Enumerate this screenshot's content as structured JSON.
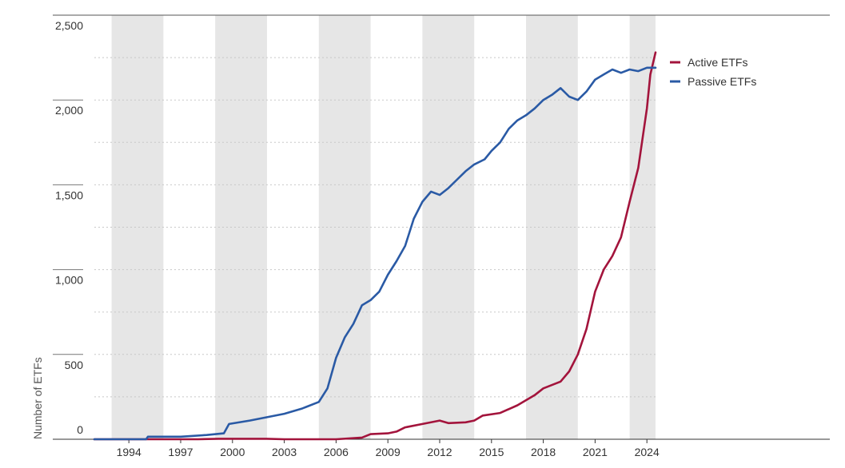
{
  "chart_data": {
    "type": "line",
    "title": "",
    "xlabel": "",
    "ylabel": "Number of ETFs",
    "xlim": [
      1992,
      2024.5
    ],
    "ylim": [
      0,
      2500
    ],
    "y_ticks": [
      0,
      500,
      1000,
      1500,
      2000,
      2500
    ],
    "y_tick_labels": [
      "0",
      "500",
      "1,000",
      "1,500",
      "2,000",
      "2,500"
    ],
    "x_ticks": [
      1994,
      1997,
      2000,
      2003,
      2006,
      2009,
      2012,
      2015,
      2018,
      2021,
      2024
    ],
    "x_tick_labels": [
      "1994",
      "1997",
      "2000",
      "2003",
      "2006",
      "2009",
      "2012",
      "2015",
      "2018",
      "2021",
      "2024"
    ],
    "shaded_bands": [
      [
        1993,
        1996
      ],
      [
        1999,
        2002
      ],
      [
        2005,
        2008
      ],
      [
        2011,
        2014
      ],
      [
        2017,
        2020
      ],
      [
        2023,
        2024.5
      ]
    ],
    "grid": "horizontal dotted",
    "legend_position": "right",
    "colors": {
      "active": "#a3143c",
      "passive": "#2a5aa5",
      "band": "#e6e6e6"
    },
    "series": [
      {
        "name": "Active ETFs",
        "color": "#a3143c",
        "points": [
          [
            1992,
            0
          ],
          [
            1998,
            0
          ],
          [
            1999.2,
            3
          ],
          [
            2002,
            3
          ],
          [
            2003,
            0
          ],
          [
            2006,
            0
          ],
          [
            2007.5,
            10
          ],
          [
            2008,
            30
          ],
          [
            2009,
            35
          ],
          [
            2009.5,
            45
          ],
          [
            2010,
            70
          ],
          [
            2011,
            90
          ],
          [
            2012,
            110
          ],
          [
            2012.5,
            95
          ],
          [
            2013.5,
            100
          ],
          [
            2014,
            110
          ],
          [
            2014.5,
            140
          ],
          [
            2015.5,
            155
          ],
          [
            2016.5,
            200
          ],
          [
            2017.5,
            260
          ],
          [
            2018,
            300
          ],
          [
            2019,
            340
          ],
          [
            2019.5,
            400
          ],
          [
            2020,
            500
          ],
          [
            2020.5,
            650
          ],
          [
            2021,
            870
          ],
          [
            2021.5,
            1000
          ],
          [
            2022,
            1080
          ],
          [
            2022.5,
            1190
          ],
          [
            2023,
            1400
          ],
          [
            2023.5,
            1600
          ],
          [
            2024,
            1950
          ],
          [
            2024.2,
            2150
          ],
          [
            2024.5,
            2280
          ]
        ]
      },
      {
        "name": "Passive ETFs",
        "color": "#2a5aa5",
        "points": [
          [
            1992,
            0
          ],
          [
            1995,
            0
          ],
          [
            1995.1,
            15
          ],
          [
            1997,
            15
          ],
          [
            1998.5,
            25
          ],
          [
            1999.5,
            35
          ],
          [
            1999.8,
            90
          ],
          [
            2001,
            110
          ],
          [
            2002,
            130
          ],
          [
            2003,
            150
          ],
          [
            2004,
            180
          ],
          [
            2005,
            220
          ],
          [
            2005.5,
            300
          ],
          [
            2006,
            480
          ],
          [
            2006.5,
            600
          ],
          [
            2007,
            680
          ],
          [
            2007.5,
            790
          ],
          [
            2008,
            820
          ],
          [
            2008.5,
            870
          ],
          [
            2009,
            970
          ],
          [
            2009.5,
            1050
          ],
          [
            2010,
            1140
          ],
          [
            2010.5,
            1300
          ],
          [
            2011,
            1400
          ],
          [
            2011.5,
            1460
          ],
          [
            2012,
            1440
          ],
          [
            2012.5,
            1480
          ],
          [
            2013,
            1530
          ],
          [
            2013.5,
            1580
          ],
          [
            2014,
            1620
          ],
          [
            2014.6,
            1650
          ],
          [
            2015,
            1700
          ],
          [
            2015.5,
            1750
          ],
          [
            2016,
            1830
          ],
          [
            2016.5,
            1880
          ],
          [
            2017,
            1910
          ],
          [
            2017.5,
            1950
          ],
          [
            2018,
            2000
          ],
          [
            2018.5,
            2030
          ],
          [
            2019,
            2070
          ],
          [
            2019.5,
            2020
          ],
          [
            2020,
            2000
          ],
          [
            2020.5,
            2050
          ],
          [
            2021,
            2120
          ],
          [
            2021.5,
            2150
          ],
          [
            2022,
            2180
          ],
          [
            2022.5,
            2160
          ],
          [
            2023,
            2180
          ],
          [
            2023.5,
            2170
          ],
          [
            2024,
            2190
          ],
          [
            2024.5,
            2190
          ]
        ]
      }
    ]
  }
}
